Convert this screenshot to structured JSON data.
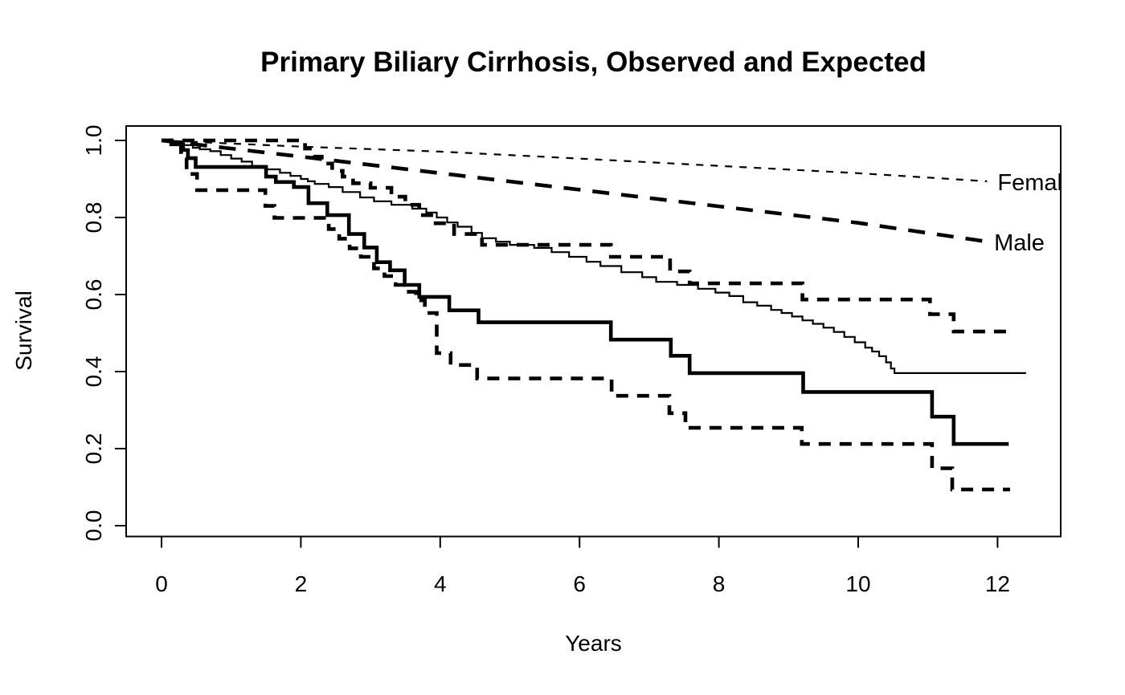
{
  "figure": {
    "background_color": "#ffffff",
    "ink_color": "#000000"
  },
  "chart_data": {
    "type": "line",
    "title": "Primary Biliary Cirrhosis, Observed and Expected",
    "xlabel": "Years",
    "ylabel": "Survival",
    "xlim": [
      -0.5,
      12.9
    ],
    "ylim": [
      -0.028,
      1.038
    ],
    "grid": false,
    "legend_position": "right-edge-inline-labels",
    "xticks": [
      0,
      2,
      4,
      6,
      8,
      10,
      12
    ],
    "yticks": [
      {
        "value": 0.0,
        "label": "0.0"
      },
      {
        "value": 0.2,
        "label": "0.2"
      },
      {
        "value": 0.4,
        "label": "0.4"
      },
      {
        "value": 0.6,
        "label": "0.6"
      },
      {
        "value": 0.8,
        "label": "0.8"
      },
      {
        "value": 1.0,
        "label": "1.0"
      }
    ],
    "series": [
      {
        "name": "female-expected",
        "description": "Expected survival, females",
        "weight": "thin",
        "line": "dashed",
        "step": false,
        "label": {
          "text": "Female",
          "x": 12.0,
          "y": 0.892
        },
        "points": [
          [
            0,
            1.0
          ],
          [
            2,
            0.984
          ],
          [
            4,
            0.971
          ],
          [
            6,
            0.953
          ],
          [
            8,
            0.934
          ],
          [
            10,
            0.915
          ],
          [
            11.85,
            0.894
          ]
        ]
      },
      {
        "name": "male-expected",
        "description": "Expected survival, males",
        "weight": "thick",
        "line": "dashed-long",
        "step": false,
        "label": {
          "text": "Male",
          "x": 11.95,
          "y": 0.735
        },
        "points": [
          [
            0,
            1.0
          ],
          [
            2,
            0.958
          ],
          [
            4,
            0.915
          ],
          [
            6,
            0.872
          ],
          [
            8,
            0.829
          ],
          [
            10,
            0.786
          ],
          [
            11.9,
            0.736
          ]
        ]
      },
      {
        "name": "female-observed",
        "description": "Observed Kaplan-Meier survival, females",
        "weight": "thin",
        "line": "solid",
        "step": true,
        "points": [
          [
            0,
            1.0
          ],
          [
            0.15,
            0.995
          ],
          [
            0.3,
            0.988
          ],
          [
            0.45,
            0.981
          ],
          [
            0.55,
            0.977
          ],
          [
            0.7,
            0.972
          ],
          [
            0.85,
            0.962
          ],
          [
            1.0,
            0.953
          ],
          [
            1.15,
            0.945
          ],
          [
            1.3,
            0.934
          ],
          [
            1.5,
            0.925
          ],
          [
            1.7,
            0.916
          ],
          [
            1.85,
            0.908
          ],
          [
            2.0,
            0.9
          ],
          [
            2.1,
            0.894
          ],
          [
            2.2,
            0.887
          ],
          [
            2.4,
            0.879
          ],
          [
            2.6,
            0.866
          ],
          [
            2.85,
            0.852
          ],
          [
            3.05,
            0.842
          ],
          [
            3.3,
            0.833
          ],
          [
            3.6,
            0.823
          ],
          [
            3.8,
            0.813
          ],
          [
            3.95,
            0.8
          ],
          [
            4.1,
            0.787
          ],
          [
            4.25,
            0.776
          ],
          [
            4.45,
            0.76
          ],
          [
            4.6,
            0.746
          ],
          [
            4.8,
            0.737
          ],
          [
            5.0,
            0.729
          ],
          [
            5.35,
            0.721
          ],
          [
            5.6,
            0.71
          ],
          [
            5.85,
            0.698
          ],
          [
            6.1,
            0.685
          ],
          [
            6.3,
            0.674
          ],
          [
            6.6,
            0.658
          ],
          [
            6.9,
            0.645
          ],
          [
            7.1,
            0.633
          ],
          [
            7.4,
            0.625
          ],
          [
            7.7,
            0.615
          ],
          [
            7.95,
            0.605
          ],
          [
            8.15,
            0.596
          ],
          [
            8.35,
            0.58
          ],
          [
            8.55,
            0.571
          ],
          [
            8.75,
            0.56
          ],
          [
            8.9,
            0.552
          ],
          [
            9.05,
            0.543
          ],
          [
            9.2,
            0.533
          ],
          [
            9.35,
            0.524
          ],
          [
            9.5,
            0.514
          ],
          [
            9.65,
            0.503
          ],
          [
            9.8,
            0.49
          ],
          [
            9.95,
            0.476
          ],
          [
            10.1,
            0.462
          ],
          [
            10.2,
            0.452
          ],
          [
            10.3,
            0.44
          ],
          [
            10.4,
            0.424
          ],
          [
            10.47,
            0.408
          ],
          [
            10.52,
            0.396
          ],
          [
            12.41,
            0.396
          ]
        ]
      },
      {
        "name": "male-observed",
        "description": "Observed Kaplan-Meier survival, males",
        "weight": "thick",
        "line": "solid",
        "step": true,
        "points": [
          [
            0,
            1.0
          ],
          [
            0.14,
            0.99
          ],
          [
            0.31,
            0.975
          ],
          [
            0.38,
            0.954
          ],
          [
            0.49,
            0.931
          ],
          [
            1.5,
            0.906
          ],
          [
            1.64,
            0.892
          ],
          [
            1.9,
            0.879
          ],
          [
            2.11,
            0.837
          ],
          [
            2.38,
            0.806
          ],
          [
            2.69,
            0.757
          ],
          [
            2.91,
            0.722
          ],
          [
            3.09,
            0.684
          ],
          [
            3.28,
            0.663
          ],
          [
            3.49,
            0.625
          ],
          [
            3.7,
            0.594
          ],
          [
            4.13,
            0.559
          ],
          [
            4.55,
            0.528
          ],
          [
            6.45,
            0.483
          ],
          [
            7.31,
            0.441
          ],
          [
            7.58,
            0.396
          ],
          [
            9.21,
            0.347
          ],
          [
            11.06,
            0.283
          ],
          [
            11.37,
            0.212
          ],
          [
            12.16,
            0.212
          ]
        ]
      },
      {
        "name": "male-ci-upper",
        "description": "Upper 95% confidence limit, males observed",
        "weight": "thick",
        "line": "dashed-ci",
        "step": true,
        "points": [
          [
            0,
            1.0
          ],
          [
            2.06,
            0.979
          ],
          [
            2.18,
            0.958
          ],
          [
            2.3,
            0.94
          ],
          [
            2.45,
            0.921
          ],
          [
            2.6,
            0.906
          ],
          [
            2.75,
            0.889
          ],
          [
            3.0,
            0.877
          ],
          [
            3.3,
            0.854
          ],
          [
            3.5,
            0.833
          ],
          [
            3.7,
            0.806
          ],
          [
            3.9,
            0.785
          ],
          [
            4.2,
            0.757
          ],
          [
            4.6,
            0.729
          ],
          [
            6.45,
            0.698
          ],
          [
            7.3,
            0.66
          ],
          [
            7.58,
            0.629
          ],
          [
            9.2,
            0.587
          ],
          [
            11.03,
            0.549
          ],
          [
            11.37,
            0.504
          ],
          [
            12.18,
            0.504
          ]
        ]
      },
      {
        "name": "male-ci-lower",
        "description": "Lower 95% confidence limit, males observed",
        "weight": "thick",
        "line": "dashed-ci",
        "step": true,
        "points": [
          [
            0,
            1.0
          ],
          [
            0.28,
            0.955
          ],
          [
            0.36,
            0.913
          ],
          [
            0.51,
            0.871
          ],
          [
            1.49,
            0.83
          ],
          [
            1.62,
            0.799
          ],
          [
            2.4,
            0.77
          ],
          [
            2.55,
            0.745
          ],
          [
            2.7,
            0.72
          ],
          [
            2.86,
            0.698
          ],
          [
            3.05,
            0.668
          ],
          [
            3.2,
            0.648
          ],
          [
            3.36,
            0.625
          ],
          [
            3.52,
            0.607
          ],
          [
            3.65,
            0.585
          ],
          [
            3.78,
            0.552
          ],
          [
            3.95,
            0.448
          ],
          [
            4.15,
            0.417
          ],
          [
            4.53,
            0.382
          ],
          [
            6.46,
            0.337
          ],
          [
            7.29,
            0.292
          ],
          [
            7.52,
            0.254
          ],
          [
            9.19,
            0.212
          ],
          [
            11.06,
            0.149
          ],
          [
            11.35,
            0.094
          ],
          [
            12.18,
            0.094
          ]
        ]
      }
    ]
  }
}
